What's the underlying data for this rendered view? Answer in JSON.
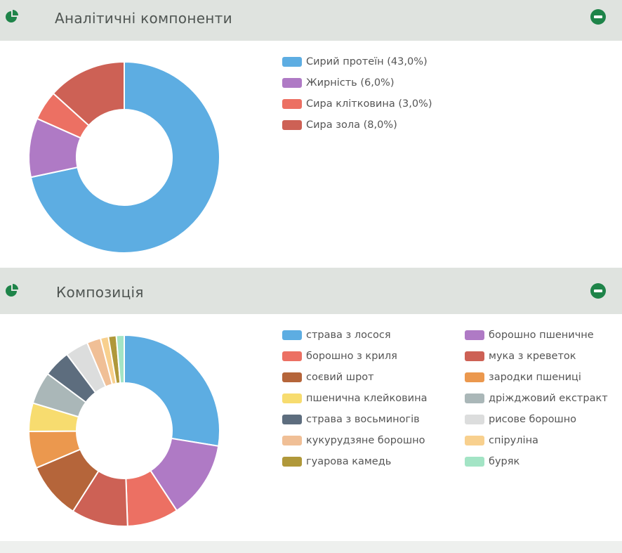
{
  "panels": [
    {
      "title": "Аналітичні компоненти",
      "chart_data": {
        "type": "pie",
        "categories": [
          "Сирий протеїн",
          "Жирність",
          "Сира клітковина",
          "Сира зола"
        ],
        "values": [
          43.0,
          6.0,
          3.0,
          8.0
        ],
        "legend_labels": [
          "Сирий протеїн (43,0%)",
          "Жирність (6,0%)",
          "Сира клітковина (3,0%)",
          "Сира зола (8,0%)"
        ],
        "colors": [
          "#5dade2",
          "#af7ac5",
          "#ec7063",
          "#cd6155"
        ],
        "legend_position": "right"
      }
    },
    {
      "title": "Композиція",
      "chart_data": {
        "type": "pie",
        "categories": [
          "страва з лосося",
          "борошно пшеничне",
          "борошно з криля",
          "мука з креветок",
          "соєвий шрот",
          "зародки пшениці",
          "пшенична клейковина",
          "дріжджовий екстракт",
          "страва з восьминогів",
          "рисове борошно",
          "кукурудзяне борошно",
          "спіруліна",
          "гуарова камедь",
          "буряк"
        ],
        "values": [
          24.7,
          11.8,
          7.8,
          8.6,
          8.6,
          5.6,
          4.3,
          4.9,
          4.1,
          3.5,
          2.1,
          1.2,
          1.2,
          1.2
        ],
        "colors": [
          "#5dade2",
          "#af7ac5",
          "#ec7063",
          "#cd6155",
          "#b5653a",
          "#eb984e",
          "#f7dc6f",
          "#aab7b8",
          "#5d6d7e",
          "#dcdddd",
          "#f0bf96",
          "#f8d08e",
          "#b0983a",
          "#a3e4c5"
        ],
        "legend_position": "right"
      }
    }
  ],
  "icons": {
    "header": "pie-chart-icon",
    "collapse": "minus-circle-icon"
  },
  "accent": "#1e8449"
}
